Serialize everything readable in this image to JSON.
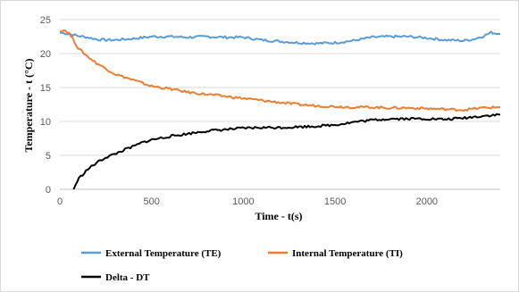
{
  "chart_data": {
    "type": "line",
    "xlabel": "Time - t(s)",
    "ylabel": "Temperature - t (°C)",
    "xlim": [
      0,
      2400
    ],
    "ylim": [
      0,
      25
    ],
    "x_ticks": [
      0,
      500,
      1000,
      1500,
      2000
    ],
    "y_ticks": [
      0,
      5,
      10,
      15,
      20,
      25
    ],
    "grid": "horizontal",
    "legend_position": "bottom",
    "series": [
      {
        "name": "External Temperature (TE)",
        "color": "#5b9bd5",
        "x": [
          0,
          50,
          100,
          150,
          200,
          250,
          300,
          400,
          500,
          600,
          700,
          800,
          900,
          1000,
          1100,
          1200,
          1300,
          1400,
          1500,
          1600,
          1700,
          1800,
          1900,
          2000,
          2100,
          2200,
          2250,
          2300,
          2350,
          2400
        ],
        "values": [
          23.1,
          22.9,
          22.6,
          22.4,
          22.1,
          22.0,
          22.0,
          22.2,
          22.5,
          22.5,
          22.4,
          22.5,
          22.4,
          22.4,
          22.0,
          21.8,
          21.6,
          21.5,
          21.6,
          21.9,
          22.4,
          22.5,
          22.5,
          22.3,
          22.0,
          21.9,
          22.1,
          22.5,
          23.1,
          22.9
        ]
      },
      {
        "name": "Internal Temperature (TI)",
        "color": "#ed7d31",
        "x": [
          0,
          25,
          50,
          75,
          100,
          150,
          200,
          250,
          300,
          400,
          500,
          600,
          700,
          800,
          900,
          1000,
          1100,
          1200,
          1300,
          1400,
          1500,
          1600,
          1700,
          1800,
          1900,
          2000,
          2100,
          2200,
          2300,
          2400
        ],
        "values": [
          23.3,
          23.5,
          23.0,
          22.0,
          20.8,
          19.6,
          18.6,
          17.8,
          17.0,
          16.1,
          15.2,
          14.8,
          14.3,
          14.0,
          13.7,
          13.4,
          13.1,
          12.8,
          12.5,
          12.3,
          12.2,
          12.1,
          12.1,
          12.0,
          12.0,
          11.9,
          11.8,
          11.7,
          12.0,
          12.1
        ]
      },
      {
        "name": "Delta - DT",
        "color": "#000000",
        "x": [
          75,
          100,
          150,
          200,
          250,
          300,
          350,
          400,
          450,
          500,
          600,
          700,
          800,
          900,
          1000,
          1100,
          1200,
          1300,
          1400,
          1500,
          1600,
          1700,
          1800,
          1900,
          2000,
          2100,
          2200,
          2300,
          2400
        ],
        "values": [
          0,
          1.5,
          2.9,
          3.9,
          4.7,
          5.2,
          5.8,
          6.3,
          6.9,
          7.3,
          7.8,
          8.2,
          8.6,
          8.8,
          9.0,
          9.1,
          9.1,
          9.2,
          9.3,
          9.5,
          9.9,
          10.2,
          10.4,
          10.4,
          10.4,
          10.3,
          10.5,
          10.8,
          11.0
        ]
      }
    ]
  }
}
